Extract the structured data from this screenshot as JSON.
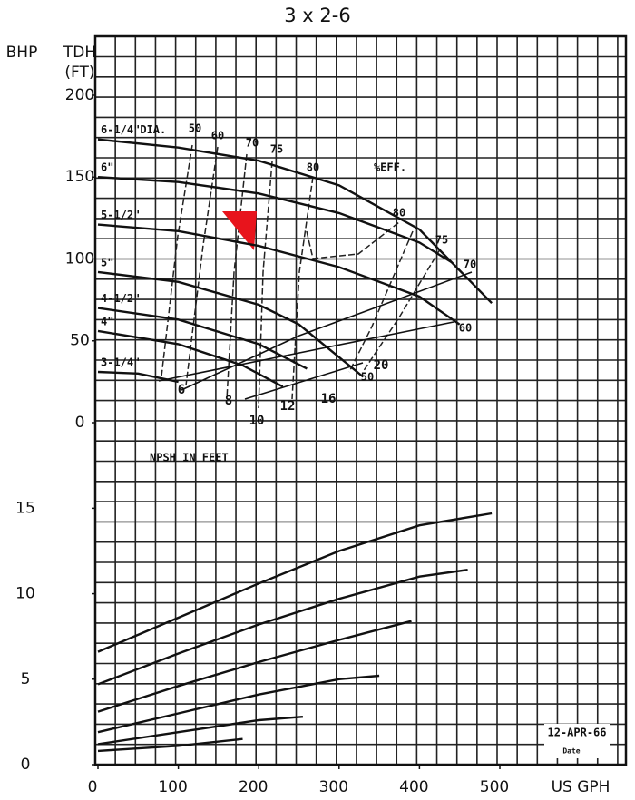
{
  "chart_data": [
    {
      "type": "line",
      "title": "3 x 2-6",
      "ylabel": [
        "TDH",
        "(FT)"
      ],
      "xlim": [
        0,
        650
      ],
      "ylim": [
        0,
        236
      ],
      "yticks": [
        0,
        50,
        100,
        150,
        200
      ],
      "series": [
        {
          "name": "6-1/4\"DIA.",
          "x": [
            0,
            100,
            200,
            300,
            400,
            490
          ],
          "values": [
            173,
            168,
            160,
            145,
            118,
            73
          ]
        },
        {
          "name": "6\"",
          "x": [
            0,
            100,
            200,
            300,
            400,
            440
          ],
          "values": [
            150,
            147,
            140,
            128,
            110,
            98
          ]
        },
        {
          "name": "5-1/2\"",
          "x": [
            0,
            100,
            200,
            300,
            400,
            450
          ],
          "values": [
            121,
            117,
            108,
            95,
            77,
            60
          ]
        },
        {
          "name": "5\"",
          "x": [
            0,
            100,
            200,
            250,
            300,
            330
          ],
          "values": [
            92,
            86,
            72,
            60,
            40,
            28
          ]
        },
        {
          "name": "4-1/2\"",
          "x": [
            0,
            100,
            200,
            260
          ],
          "values": [
            70,
            63,
            48,
            33
          ]
        },
        {
          "name": "4\"",
          "x": [
            0,
            100,
            180,
            230
          ],
          "values": [
            56,
            48,
            35,
            22
          ]
        },
        {
          "name": "3-1/4\"",
          "x": [
            0,
            50,
            100
          ],
          "values": [
            31,
            30,
            25
          ]
        }
      ],
      "efficiency_labels": [
        "50",
        "60",
        "70",
        "75",
        "80",
        "%EFF.",
        "80",
        "75",
        "70",
        "60",
        "50"
      ],
      "npsh_title": "NPSH IN FEET",
      "npsh_labels": [
        "6",
        "8",
        "10",
        "12",
        "16",
        "20"
      ]
    },
    {
      "type": "line",
      "ylabel": "BHP",
      "xlabel": "US GPH",
      "xlim": [
        0,
        650
      ],
      "ylim": [
        0,
        19
      ],
      "xticks": [
        0,
        100,
        200,
        300,
        400,
        500
      ],
      "yticks": [
        0,
        5,
        10,
        15
      ],
      "series": [
        {
          "x": [
            0,
            100,
            200,
            300,
            400,
            490
          ],
          "values": [
            6.6,
            8.6,
            10.6,
            12.5,
            14.0,
            14.7
          ]
        },
        {
          "x": [
            0,
            100,
            200,
            300,
            400,
            460
          ],
          "values": [
            4.7,
            6.5,
            8.2,
            9.7,
            11.0,
            11.4
          ]
        },
        {
          "x": [
            0,
            100,
            200,
            300,
            390
          ],
          "values": [
            3.1,
            4.6,
            6.0,
            7.3,
            8.4
          ]
        },
        {
          "x": [
            0,
            100,
            200,
            300,
            350
          ],
          "values": [
            1.9,
            3.0,
            4.1,
            5.0,
            5.2
          ]
        },
        {
          "x": [
            0,
            100,
            200,
            255
          ],
          "values": [
            1.2,
            1.9,
            2.6,
            2.8
          ]
        },
        {
          "x": [
            0,
            100,
            180
          ],
          "values": [
            0.8,
            1.1,
            1.5
          ]
        }
      ],
      "annotations": [
        "12-APR-66",
        "Date"
      ]
    }
  ]
}
